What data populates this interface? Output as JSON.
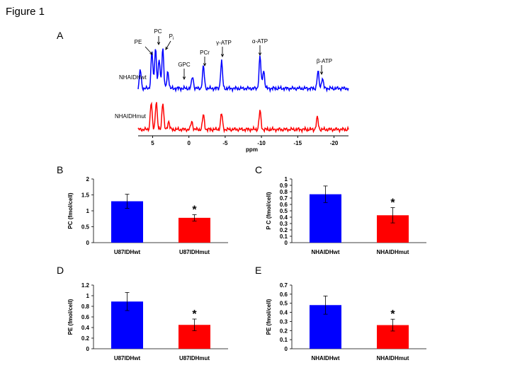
{
  "figure_title": "Figure 1",
  "panel_letters": [
    "A",
    "B",
    "C",
    "D",
    "E"
  ],
  "chart_data": [
    {
      "panel": "A",
      "type": "line",
      "series": [
        {
          "name": "NHAIDHwt",
          "color": "#0000ff"
        },
        {
          "name": "NHAIDHmut",
          "color": "#ff0000"
        }
      ],
      "xlabel": "ppm",
      "xlim": [
        7,
        -22
      ],
      "xticks": [
        5,
        0,
        -5,
        -10,
        -15,
        -20
      ],
      "xtick_labels": [
        "5",
        "0",
        "-5",
        "-10",
        "-15",
        "-20"
      ],
      "peaks_wt": [
        {
          "ppm": 6.7,
          "h": 0.55
        },
        {
          "ppm": 5.1,
          "h": 1.1
        },
        {
          "ppm": 4.6,
          "h": 1.2
        },
        {
          "ppm": 4.1,
          "h": 0.85
        },
        {
          "ppm": 3.6,
          "h": 1.2
        },
        {
          "ppm": 2.9,
          "h": 0.5
        },
        {
          "ppm": -0.5,
          "h": 0.35
        },
        {
          "ppm": -2.0,
          "h": 0.65
        },
        {
          "ppm": -4.5,
          "h": 0.8
        },
        {
          "ppm": -9.8,
          "h": 0.95
        },
        {
          "ppm": -10.3,
          "h": 0.55
        },
        {
          "ppm": -17.8,
          "h": 0.5
        },
        {
          "ppm": -18.4,
          "h": 0.3
        }
      ],
      "peaks_mut": [
        {
          "ppm": 5.2,
          "h": 1.0
        },
        {
          "ppm": 4.5,
          "h": 1.05
        },
        {
          "ppm": 3.6,
          "h": 1.0
        },
        {
          "ppm": 2.8,
          "h": 0.3
        },
        {
          "ppm": -0.4,
          "h": 0.3
        },
        {
          "ppm": -2.0,
          "h": 0.55
        },
        {
          "ppm": -4.5,
          "h": 0.6
        },
        {
          "ppm": -9.8,
          "h": 0.7
        },
        {
          "ppm": -17.7,
          "h": 0.45
        }
      ],
      "annotations": [
        {
          "label": "PE",
          "ppm": 5.1
        },
        {
          "label": "PC",
          "ppm": 4.6
        },
        {
          "label": "Pi",
          "ppm": 3.6
        },
        {
          "label": "GPC",
          "ppm": -0.5
        },
        {
          "label": "PCr",
          "ppm": -2.0
        },
        {
          "label": "γ-ATP",
          "ppm": -4.5
        },
        {
          "label": "α-ATP",
          "ppm": -9.8
        },
        {
          "label": "β-ATP",
          "ppm": -17.8
        }
      ]
    },
    {
      "panel": "B",
      "type": "bar",
      "categories": [
        "U87IDHwt",
        "U87IDHmut"
      ],
      "values": [
        1.3,
        0.78
      ],
      "errors": [
        0.22,
        0.1
      ],
      "colors": [
        "#0000ff",
        "#ff0000"
      ],
      "ylabel": "PC (fmol/cell)",
      "ylim": [
        0,
        2
      ],
      "yticks": [
        "0",
        "0.5",
        "1",
        "1.5",
        "2"
      ],
      "significance": [
        "",
        "*"
      ]
    },
    {
      "panel": "C",
      "type": "bar",
      "categories": [
        "NHAIDHwt",
        "NHAIDHmut"
      ],
      "values": [
        0.76,
        0.43
      ],
      "errors": [
        0.13,
        0.12
      ],
      "colors": [
        "#0000ff",
        "#ff0000"
      ],
      "ylabel": "P C (fmol/cell)",
      "ylim": [
        0,
        1
      ],
      "yticks": [
        "0",
        "0.1",
        "0.2",
        "0.3",
        "0.4",
        "0.5",
        "0.6",
        "0.7",
        "0.8",
        "0.9",
        "1"
      ],
      "significance": [
        "",
        "*"
      ]
    },
    {
      "panel": "D",
      "type": "bar",
      "categories": [
        "U87IDHwt",
        "U87IDHmut"
      ],
      "values": [
        0.89,
        0.45
      ],
      "errors": [
        0.17,
        0.11
      ],
      "colors": [
        "#0000ff",
        "#ff0000"
      ],
      "ylabel": "PE (fmol/cell)",
      "ylim": [
        0,
        1.2
      ],
      "yticks": [
        "0",
        "0.2",
        "0.4",
        "0.6",
        "0.8",
        "1",
        "1.2"
      ],
      "significance": [
        "",
        "*"
      ]
    },
    {
      "panel": "E",
      "type": "bar",
      "categories": [
        "NHAIDHwt",
        "NHAIDHmut"
      ],
      "values": [
        0.48,
        0.26
      ],
      "errors": [
        0.1,
        0.065
      ],
      "colors": [
        "#0000ff",
        "#ff0000"
      ],
      "ylabel": "PE (fmol/cell)",
      "ylim": [
        0,
        0.7
      ],
      "yticks": [
        "0",
        "0.1",
        "0.2",
        "0.3",
        "0.4",
        "0.5",
        "0.6",
        "0.7"
      ],
      "significance": [
        "",
        "*"
      ]
    }
  ]
}
